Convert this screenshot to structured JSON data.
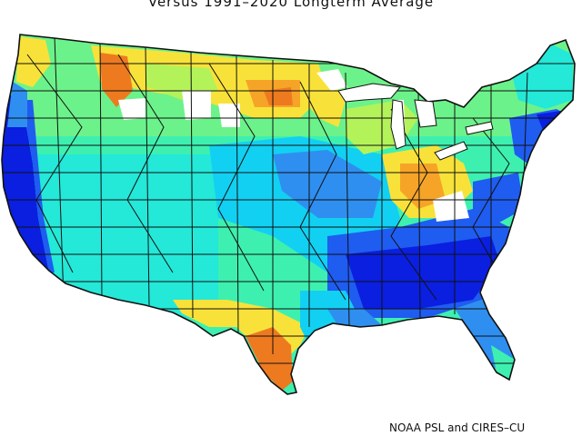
{
  "title": "Versus 1991–2020 Longterm Average",
  "credit": "NOAA PSL and CIRES–CU",
  "colors": {
    "dark_blue": "#0a1fe0",
    "blue": "#1f5cf0",
    "mid_blue": "#2f8ff0",
    "cyan": "#12d0f2",
    "aqua": "#24e8d8",
    "teal_green": "#3ef0b0",
    "green": "#6cf28a",
    "yellow_green": "#b4f25a",
    "yellow": "#f8e23a",
    "orange": "#f6a428",
    "dark_orange": "#ee7a20",
    "no_data": "#ffffff",
    "border": "#111111"
  }
}
